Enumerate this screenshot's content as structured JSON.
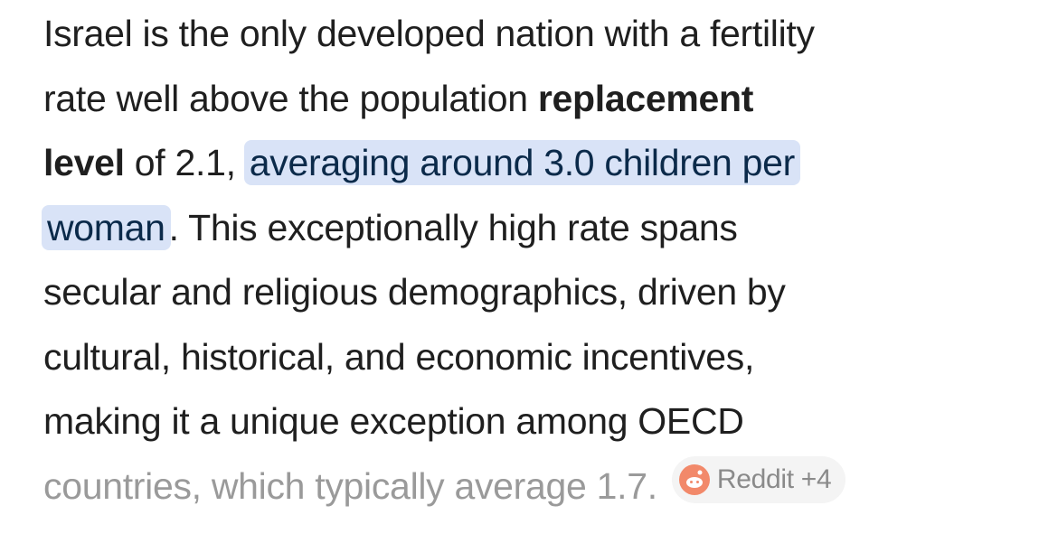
{
  "paragraph": {
    "lines": [
      [
        {
          "text": "Israel is the only developed nation with a fertility"
        }
      ],
      [
        {
          "text": "rate well above the population "
        },
        {
          "text": "replacement",
          "style": "bold"
        }
      ],
      [
        {
          "text": "level",
          "style": "bold"
        },
        {
          "text": " of 2.1, "
        },
        {
          "text": "averaging around 3.0 children per",
          "style": "highlight"
        }
      ],
      [
        {
          "text": "woman",
          "style": "highlight"
        },
        {
          "text": ". This exceptionally high rate spans"
        }
      ],
      [
        {
          "text": "secular and religious demographics, driven by"
        }
      ],
      [
        {
          "text": "cultural, historical, and economic incentives,"
        }
      ],
      [
        {
          "text": "making it a unique exception among OECD"
        }
      ],
      [
        {
          "text": "countries, which typically average 1.7.",
          "style": "faded"
        },
        {
          "text": "Reddit +4",
          "style": "chip"
        }
      ]
    ]
  }
}
